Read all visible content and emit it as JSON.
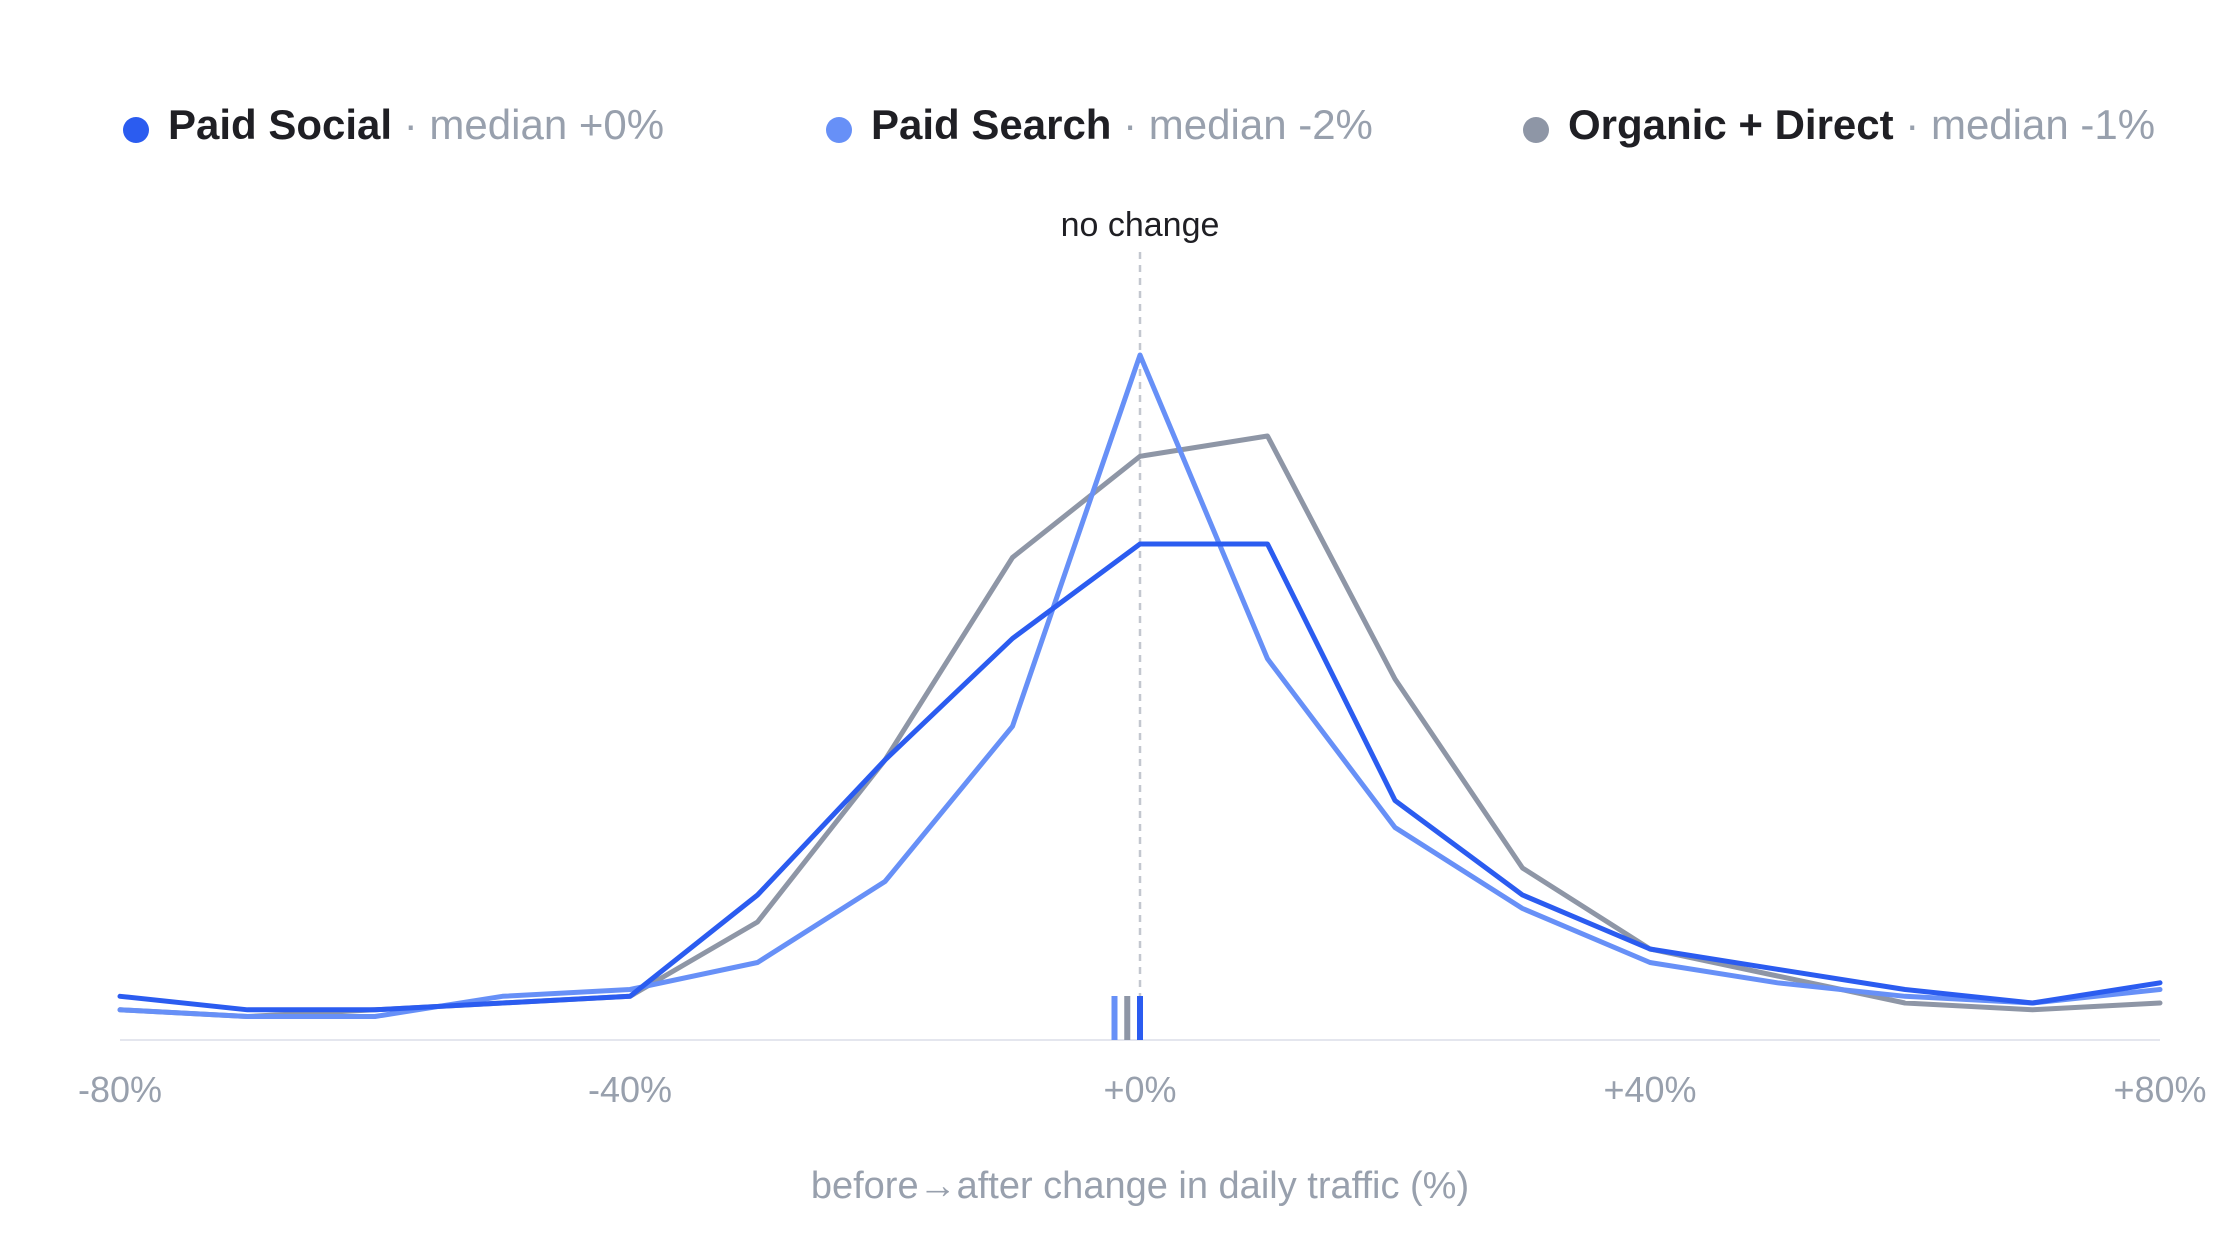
{
  "chart_data": {
    "type": "line",
    "title": "",
    "xlabel": "before→after change in daily traffic (%)",
    "ylabel": "",
    "xlim": [
      -80,
      80
    ],
    "ylim": [
      0,
      100
    ],
    "x": [
      -80,
      -70,
      -60,
      -50,
      -40,
      -30,
      -20,
      -10,
      0,
      10,
      20,
      30,
      40,
      50,
      60,
      70,
      80
    ],
    "x_tick_values": [
      -80,
      -40,
      0,
      40,
      80
    ],
    "x_tick_labels": [
      "-80%",
      "-40%",
      "+0%",
      "+40%",
      "+80%"
    ],
    "grid": false,
    "legend_position": "top",
    "reference_line": {
      "x": 0,
      "label": "no change",
      "style": "dashed"
    },
    "series": [
      {
        "name": "Paid Social",
        "median_label": "median +0%",
        "median": 0,
        "color": "#2b5cf0",
        "values": [
          5,
          3,
          3,
          4,
          5,
          20,
          40,
          58,
          72,
          72,
          34,
          20,
          12,
          9,
          6,
          4,
          7
        ]
      },
      {
        "name": "Paid Search",
        "median_label": "median -2%",
        "median": -2,
        "color": "#6790f7",
        "values": [
          3,
          2,
          2,
          5,
          6,
          10,
          22,
          45,
          100,
          55,
          30,
          18,
          10,
          7,
          5,
          4,
          6
        ]
      },
      {
        "name": "Organic + Direct",
        "median_label": "median -1%",
        "median": -1,
        "color": "#8e96a6",
        "values": [
          3,
          2,
          3,
          4,
          5,
          16,
          40,
          70,
          85,
          88,
          52,
          24,
          12,
          8,
          4,
          3,
          4
        ]
      }
    ]
  }
}
